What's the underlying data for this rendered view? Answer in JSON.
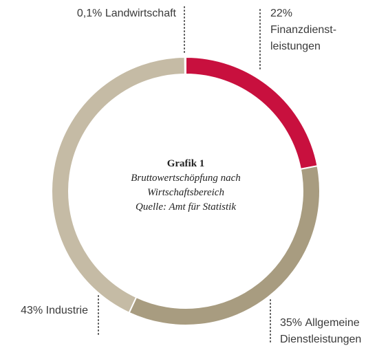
{
  "chart_data": {
    "type": "donut",
    "title": "Grafik 1",
    "subtitle": "Bruttowertschöpfung nach Wirtschaftsbereich",
    "source": "Quelle: Amt für Statistik",
    "categories": [
      "Finanzdienst-leistungen",
      "Allgemeine Dienstleistungen",
      "Industrie",
      "Landwirtschaft"
    ],
    "values": [
      22,
      35,
      43,
      0.1
    ],
    "value_labels": [
      "22%",
      "35%",
      "43%",
      "0,1%"
    ],
    "colors": [
      "#c8103e",
      "#a89c80",
      "#c5bba5",
      "#d8d0bf"
    ]
  }
}
